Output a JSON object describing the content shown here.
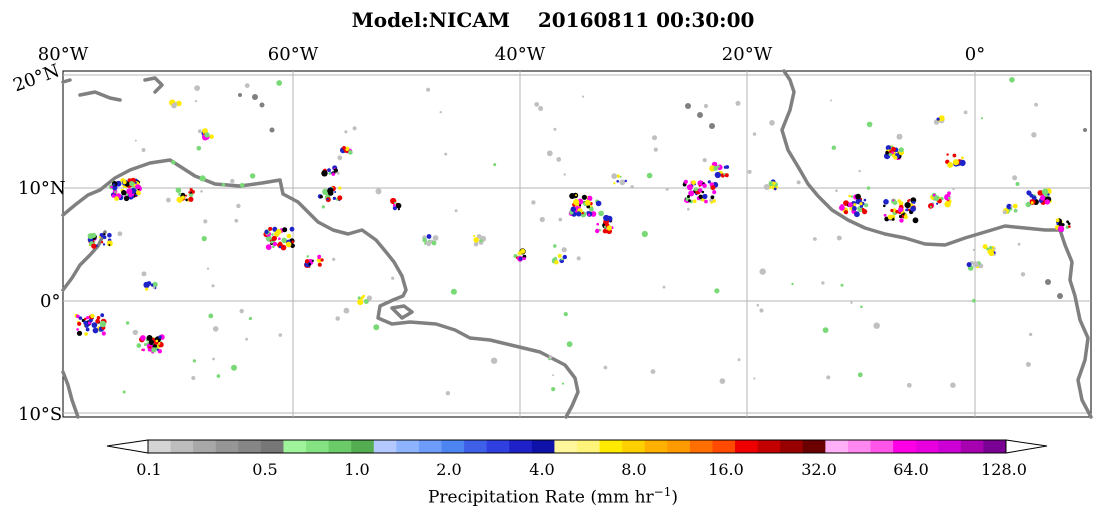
{
  "title": {
    "model": "Model:NICAM",
    "datetime": "20160811 00:30:00"
  },
  "map": {
    "lon_labels": [
      "80°W",
      "60°W",
      "40°W",
      "20°W",
      "0°"
    ],
    "lat_labels": [
      "20°N",
      "10°N",
      "0°",
      "10°S"
    ],
    "land_color": "#ffffff",
    "coast_color": "#808080",
    "grid_color": "#b0b0b0",
    "gridlines": true
  },
  "colorbar": {
    "label_prefix": "Precipitation Rate (mm hr",
    "label_exp": "−1",
    "label_suffix": ")",
    "tick_labels": [
      "0.1",
      "0.5",
      "1.0",
      "2.0",
      "4.0",
      "8.0",
      "16.0",
      "32.0",
      "64.0",
      "128.0"
    ],
    "colors": [
      "#d4d4d4",
      "#bdbdbd",
      "#a8a8a8",
      "#969696",
      "#868686",
      "#777777",
      "#9ff39a",
      "#84e282",
      "#6ccb69",
      "#55ad52",
      "#b3c9ff",
      "#8eb3ff",
      "#6e9cfa",
      "#4c85f2",
      "#3e5fe8",
      "#2f3fe0",
      "#1f22c8",
      "#0f12a8",
      "#fff59a",
      "#fff47a",
      "#ffea00",
      "#ffd000",
      "#ffb000",
      "#ff9a00",
      "#ff6f00",
      "#ff4a00",
      "#ee0000",
      "#c20000",
      "#980000",
      "#6a0000",
      "#ffb0f7",
      "#ff88f0",
      "#ff55e8",
      "#ff00e6",
      "#e800e0",
      "#cc00d4",
      "#a600b0",
      "#7a0094"
    ]
  },
  "precip_legend": {
    "light": "#c0c0c0",
    "moderate": "#7ad977",
    "heavy": "#1f22c8",
    "intense": "#ee0000",
    "extreme": "#ff00e6"
  }
}
